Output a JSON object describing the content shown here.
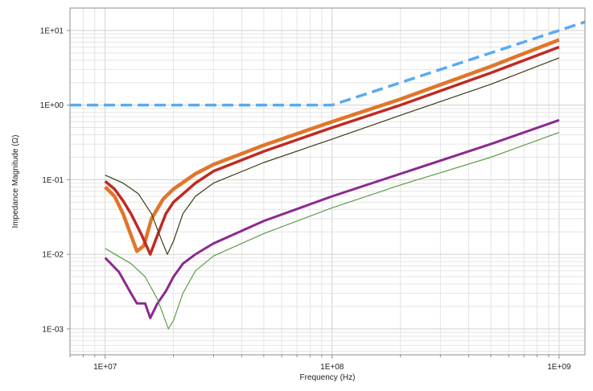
{
  "chart_data": {
    "type": "line",
    "title": "",
    "xlabel": "Frequency (Hz)",
    "ylabel": "Impedance Magnitude (Ω)",
    "xscale": "log",
    "yscale": "log",
    "xlim": [
      7000000,
      1300000000
    ],
    "ylim": [
      0.00045,
      20
    ],
    "grid": true,
    "legend": "none",
    "x_ticks": [
      {
        "value": 10000000,
        "label": "1E+07"
      },
      {
        "value": 100000000,
        "label": "1E+08"
      },
      {
        "value": 1000000000,
        "label": "1E+09"
      }
    ],
    "y_ticks": [
      {
        "value": 10,
        "label": "1E+01"
      },
      {
        "value": 1,
        "label": "1E+00"
      },
      {
        "value": 0.1,
        "label": "1E-01"
      },
      {
        "value": 0.01,
        "label": "1E-02"
      },
      {
        "value": 0.001,
        "label": "1E-03"
      }
    ],
    "series": [
      {
        "color": "#5aaaf0",
        "style": "dashed",
        "width": 3.5,
        "points": [
          [
            7000000,
            1.0
          ],
          [
            100000000,
            1.0
          ],
          [
            1300000000,
            13.0
          ]
        ]
      },
      {
        "color": "#e0762a",
        "style": "solid",
        "width": 4.5,
        "points": [
          [
            10000000,
            0.08
          ],
          [
            11000000,
            0.06
          ],
          [
            12000000,
            0.035
          ],
          [
            13000000,
            0.018
          ],
          [
            13800000,
            0.011
          ],
          [
            14800000,
            0.013
          ],
          [
            16000000,
            0.03
          ],
          [
            18000000,
            0.055
          ],
          [
            20000000,
            0.075
          ],
          [
            25000000,
            0.12
          ],
          [
            30000000,
            0.16
          ],
          [
            50000000,
            0.29
          ],
          [
            100000000,
            0.6
          ],
          [
            200000000,
            1.2
          ],
          [
            500000000,
            3.3
          ],
          [
            1000000000,
            7.5
          ]
        ]
      },
      {
        "color": "#c02a22",
        "style": "solid",
        "width": 3.5,
        "points": [
          [
            10000000,
            0.095
          ],
          [
            11000000,
            0.075
          ],
          [
            12000000,
            0.052
          ],
          [
            13000000,
            0.035
          ],
          [
            14500000,
            0.018
          ],
          [
            15800000,
            0.01
          ],
          [
            17000000,
            0.018
          ],
          [
            18500000,
            0.035
          ],
          [
            20000000,
            0.05
          ],
          [
            25000000,
            0.09
          ],
          [
            30000000,
            0.13
          ],
          [
            50000000,
            0.24
          ],
          [
            100000000,
            0.5
          ],
          [
            200000000,
            1.0
          ],
          [
            500000000,
            2.7
          ],
          [
            1000000000,
            6.0
          ]
        ]
      },
      {
        "color": "#3b3a14",
        "style": "solid",
        "width": 1.2,
        "points": [
          [
            10000000,
            0.115
          ],
          [
            12000000,
            0.09
          ],
          [
            14000000,
            0.065
          ],
          [
            16000000,
            0.035
          ],
          [
            17800000,
            0.015
          ],
          [
            18800000,
            0.01
          ],
          [
            20000000,
            0.015
          ],
          [
            22000000,
            0.035
          ],
          [
            25000000,
            0.06
          ],
          [
            30000000,
            0.09
          ],
          [
            50000000,
            0.17
          ],
          [
            100000000,
            0.35
          ],
          [
            200000000,
            0.73
          ],
          [
            500000000,
            1.9
          ],
          [
            1000000000,
            4.3
          ]
        ]
      },
      {
        "color": "#8b2a8f",
        "style": "solid",
        "width": 3,
        "points": [
          [
            10000000,
            0.009
          ],
          [
            11500000,
            0.0058
          ],
          [
            13000000,
            0.003
          ],
          [
            13800000,
            0.0022
          ],
          [
            15000000,
            0.0022
          ],
          [
            15800000,
            0.0014
          ],
          [
            17000000,
            0.0022
          ],
          [
            18500000,
            0.0032
          ],
          [
            20000000,
            0.005
          ],
          [
            22000000,
            0.0075
          ],
          [
            25000000,
            0.01
          ],
          [
            30000000,
            0.014
          ],
          [
            50000000,
            0.028
          ],
          [
            100000000,
            0.06
          ],
          [
            200000000,
            0.12
          ],
          [
            500000000,
            0.3
          ],
          [
            1000000000,
            0.63
          ]
        ]
      },
      {
        "color": "#5d9e4a",
        "style": "solid",
        "width": 1.2,
        "points": [
          [
            10000000,
            0.012
          ],
          [
            13000000,
            0.0075
          ],
          [
            15000000,
            0.005
          ],
          [
            17000000,
            0.0025
          ],
          [
            19000000,
            0.001
          ],
          [
            20000000,
            0.0013
          ],
          [
            22000000,
            0.003
          ],
          [
            25000000,
            0.006
          ],
          [
            30000000,
            0.0095
          ],
          [
            50000000,
            0.019
          ],
          [
            100000000,
            0.042
          ],
          [
            200000000,
            0.085
          ],
          [
            500000000,
            0.2
          ],
          [
            1000000000,
            0.43
          ]
        ]
      }
    ]
  },
  "colors": {
    "plot_border": "#8c8c8c",
    "grid_minor": "#e4e4e4",
    "grid_major": "#d0d0d0",
    "text": "#222222"
  }
}
